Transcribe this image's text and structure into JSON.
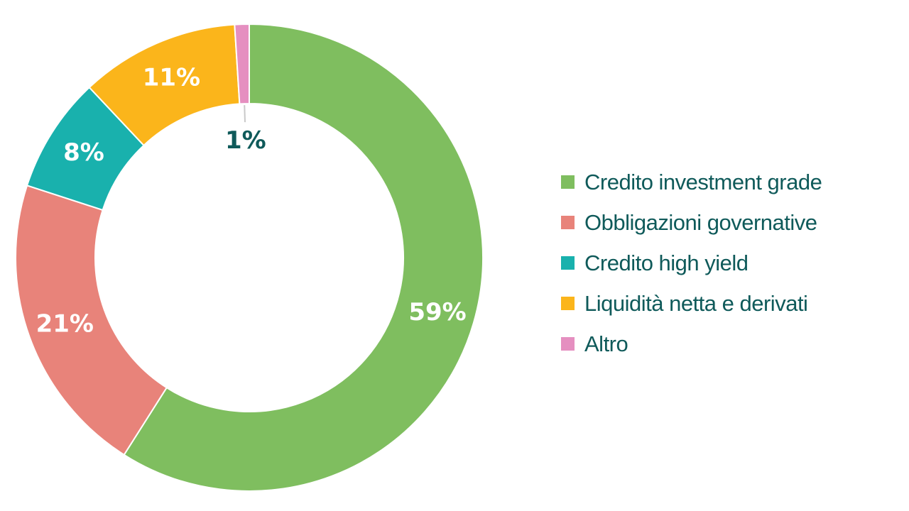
{
  "chart_data": {
    "type": "pie",
    "style": "donut",
    "title": "",
    "categories": [
      "Credito investment grade",
      "Obbligazioni governative",
      "Credito high yield",
      "Liquidità netta e derivati",
      "Altro"
    ],
    "values": [
      59,
      21,
      8,
      11,
      1
    ],
    "value_labels": [
      "59%",
      "21%",
      "8%",
      "11%",
      "1%"
    ],
    "order_clockwise_from_top": [
      "Credito investment grade",
      "Obbligazioni governative",
      "Credito high yield",
      "Liquidità netta e derivati",
      "Altro"
    ],
    "colors": [
      "#7fbe5f",
      "#e8837a",
      "#19b1ad",
      "#fbb51b",
      "#e58fc0"
    ],
    "label_colors": [
      "#ffffff",
      "#ffffff",
      "#ffffff",
      "#ffffff",
      "#0f5a5a"
    ],
    "legend_position": "right"
  }
}
